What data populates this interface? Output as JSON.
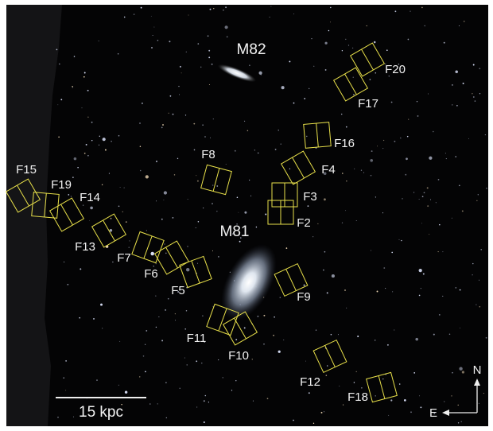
{
  "galaxies": [
    {
      "label": "M82"
    },
    {
      "label": "M81"
    }
  ],
  "fields": [
    {
      "label": "F20"
    },
    {
      "label": "F17"
    },
    {
      "label": "F16"
    },
    {
      "label": "F4"
    },
    {
      "label": "F3"
    },
    {
      "label": "F2"
    },
    {
      "label": "F8"
    },
    {
      "label": "F9"
    },
    {
      "label": "F15"
    },
    {
      "label": "F19"
    },
    {
      "label": "F14"
    },
    {
      "label": "F13"
    },
    {
      "label": "F7"
    },
    {
      "label": "F6"
    },
    {
      "label": "F5"
    },
    {
      "label": "F11"
    },
    {
      "label": "F10"
    },
    {
      "label": "F12"
    },
    {
      "label": "F18"
    }
  ],
  "scale_bar": {
    "label": "15 kpc"
  },
  "compass": {
    "north": "N",
    "east": "E"
  }
}
